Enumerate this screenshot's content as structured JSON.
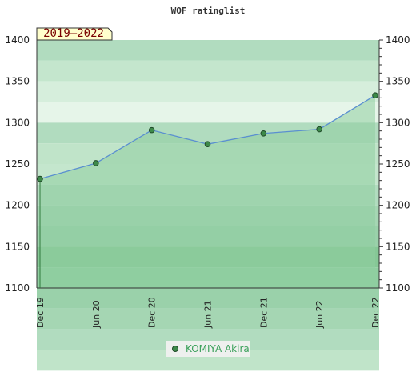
{
  "chart_data": {
    "type": "area",
    "title": "WOF ratinglist",
    "period_badge": "2019–2022",
    "x": [
      "Dec 19",
      "Jun 20",
      "Dec 20",
      "Jun 21",
      "Dec 21",
      "Jun 22",
      "Dec 22"
    ],
    "series": [
      {
        "name": "KOMIYA Akira",
        "values": [
          1232,
          1251,
          1291,
          1274,
          1287,
          1292,
          1333
        ]
      }
    ],
    "ylim": [
      1100,
      1400
    ],
    "yticks": [
      1100,
      1150,
      1200,
      1250,
      1300,
      1350,
      1400
    ],
    "y_axes": "left-and-right",
    "grid": true,
    "legend": "bottom-center",
    "colors": {
      "line": "#5a8fd0",
      "marker": "#3d8a4a",
      "fill": "#8fcea0",
      "badge_bg": "#ffffcc"
    }
  }
}
